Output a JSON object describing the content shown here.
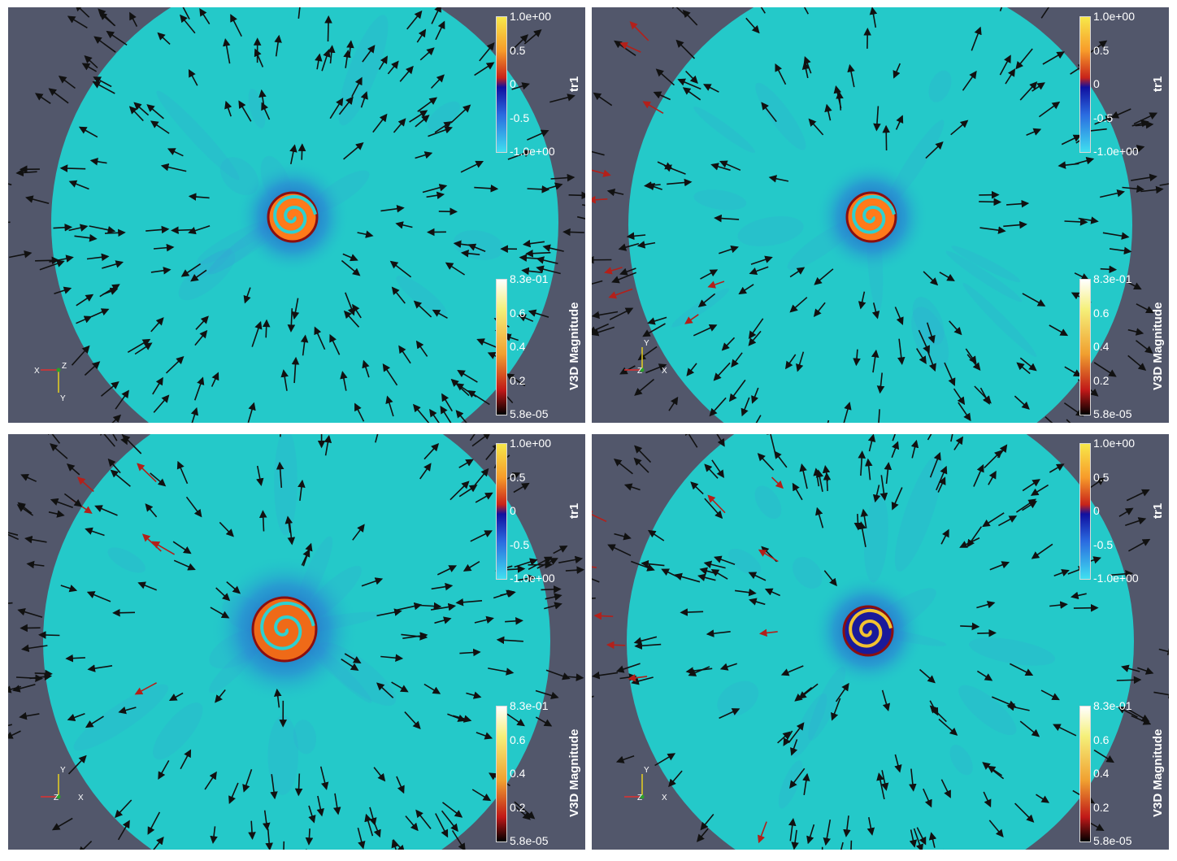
{
  "colors": {
    "background": "#52576b",
    "fluid": "#24c9c9",
    "arrow_slow": "#111111",
    "arrow_fast": "#b3201a"
  },
  "panels": [
    {
      "id": "top-left",
      "tr1_bar": {
        "title": "tr1",
        "ticks": [
          "1.0e+00",
          "0.5",
          "0",
          "-0.5",
          "-1.0e+00"
        ]
      },
      "v3d_bar": {
        "title": "V3D Magnitude",
        "ticks": [
          "8.3e-01",
          "0.6",
          "0.4",
          "0.2",
          "5.8e-05"
        ]
      },
      "axes": {
        "labels": [
          "X",
          "Z",
          "Y"
        ],
        "icon": "xzy-orientation-axes-icon"
      }
    },
    {
      "id": "top-right",
      "tr1_bar": {
        "title": "tr1",
        "ticks": [
          "1.0e+00",
          "0.5",
          "0",
          "-0.5",
          "-1.0e+00"
        ]
      },
      "v3d_bar": {
        "title": "V3D Magnitude",
        "ticks": [
          "8.3e-01",
          "0.6",
          "0.4",
          "0.2",
          "5.8e-05"
        ]
      },
      "axes": {
        "labels": [
          "Y",
          "Z",
          "X"
        ],
        "icon": "yzx-orientation-axes-icon"
      }
    },
    {
      "id": "bottom-left",
      "tr1_bar": {
        "title": "tr1",
        "ticks": [
          "1.0e+00",
          "0.5",
          "0",
          "-0.5",
          "-1.0e+00"
        ]
      },
      "v3d_bar": {
        "title": "V3D Magnitude",
        "ticks": [
          "8.3e-01",
          "0.6",
          "0.4",
          "0.2",
          "5.8e-05"
        ]
      },
      "axes": {
        "labels": [
          "Y",
          "Z",
          "X"
        ],
        "icon": "yzx-orientation-axes-icon"
      }
    },
    {
      "id": "bottom-right",
      "tr1_bar": {
        "title": "tr1",
        "ticks": [
          "1.0e+00",
          "0.5",
          "0",
          "-0.5",
          "-1.0e+00"
        ]
      },
      "v3d_bar": {
        "title": "V3D Magnitude",
        "ticks": [
          "8.3e-01",
          "0.6",
          "0.4",
          "0.2",
          "5.8e-05"
        ]
      },
      "axes": {
        "labels": [
          "Y",
          "Z",
          "X"
        ],
        "icon": "yzx-orientation-axes-icon"
      }
    }
  ]
}
